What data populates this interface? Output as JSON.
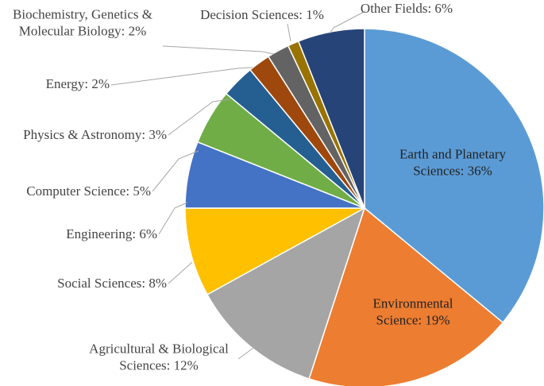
{
  "chart_data": {
    "type": "pie",
    "title": "",
    "start_angle_deg": 0,
    "direction": "clockwise",
    "slices": [
      {
        "name": "Earth and Planetary Sciences",
        "label": "Earth and Planetary|Sciences: 36%",
        "value": 36,
        "color": "#5B9BD5"
      },
      {
        "name": "Environmental Science",
        "label": "Environmental|Science: 19%",
        "value": 19,
        "color": "#ED7D31"
      },
      {
        "name": "Agricultural & Biological Sciences",
        "label": "Agricultural & Biological|Sciences: 12%",
        "value": 12,
        "color": "#A5A5A5"
      },
      {
        "name": "Social Sciences",
        "label": "Social Sciences: 8%",
        "value": 8,
        "color": "#FFC000"
      },
      {
        "name": "Engineering",
        "label": "Engineering: 6%",
        "value": 6,
        "color": "#4472C4"
      },
      {
        "name": "Computer Science",
        "label": "Computer Science: 5%",
        "value": 5,
        "color": "#70AD47"
      },
      {
        "name": "Physics & Astronomy",
        "label": "Physics & Astronomy: 3%",
        "value": 3,
        "color": "#255E91"
      },
      {
        "name": "Energy",
        "label": "Energy: 2%",
        "value": 2,
        "color": "#9E480E"
      },
      {
        "name": "Biochemistry, Genetics & Molecular Biology",
        "label": "Biochemistry, Genetics &|Molecular Biology: 2%",
        "value": 2,
        "color": "#636363"
      },
      {
        "name": "Decision Sciences",
        "label": "Decision Sciences: 1%",
        "value": 1,
        "color": "#997300"
      },
      {
        "name": "Other Fields",
        "label": "Other Fields: 6%",
        "value": 6,
        "color": "#264478"
      }
    ]
  }
}
